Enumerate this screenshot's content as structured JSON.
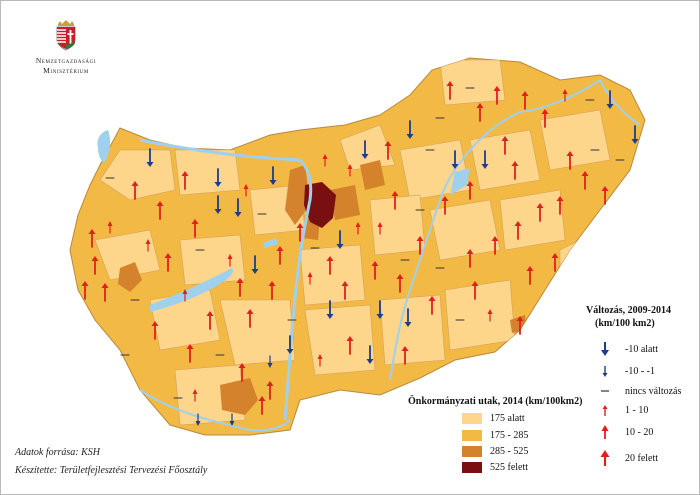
{
  "logo": {
    "line1": "Nemzetgazdasági",
    "line2": "Minisztérium"
  },
  "colors": {
    "class1": "#fdd58b",
    "class2": "#f2b944",
    "class3": "#d4822c",
    "class4": "#7a0f12",
    "water": "#9fd1ee",
    "arrow_down": "#1b3d8c",
    "arrow_up": "#e0201e",
    "border": "#c58c3a"
  },
  "legend_change": {
    "title_line1": "Változás, 2009-2014",
    "title_line2": "(km/100 km2)",
    "items": [
      "-10 alatt",
      "-10 - -1",
      "nincs változás",
      "1 - 10",
      "10 - 20",
      "20 felett"
    ]
  },
  "legend_density": {
    "title": "Önkormányzati utak, 2014 (km/100km2)",
    "items": [
      "175 alatt",
      "175 - 285",
      "285 - 525",
      "525  felett"
    ]
  },
  "source": "Adatok forrása: KSH",
  "author": "Készítette: Területfejlesztési Tervezési Főosztály"
}
